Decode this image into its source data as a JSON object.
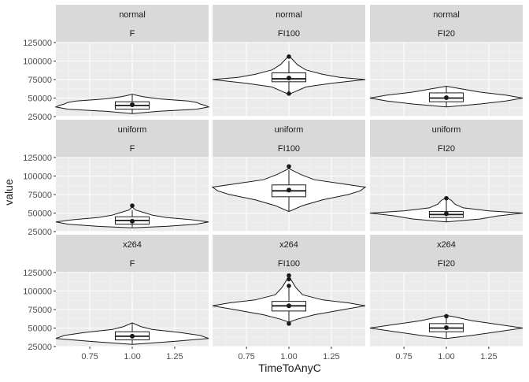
{
  "chart_data": {
    "type": "violin",
    "xlabel": "TimeToAnyC",
    "ylabel": "value",
    "xlim": [
      0.55,
      1.45
    ],
    "ylim": [
      25000,
      125000
    ],
    "x_ticks": [
      0.75,
      1.0,
      1.25
    ],
    "x_tick_labels": [
      "0.75",
      "1.00",
      "1.25"
    ],
    "y_ticks": [
      25000,
      50000,
      75000,
      100000,
      125000
    ],
    "y_tick_labels": [
      "25000",
      "50000",
      "75000",
      "100000",
      "125000"
    ],
    "grid": true,
    "facet_rows": [
      "normal",
      "uniform",
      "x264"
    ],
    "facet_cols": [
      "F",
      "FI100",
      "FI20"
    ],
    "panels": [
      {
        "row": "normal",
        "col": "F",
        "violin": [
          [
            29000,
            0.0
          ],
          [
            32000,
            0.15
          ],
          [
            35000,
            0.38
          ],
          [
            38000,
            0.45
          ],
          [
            40000,
            0.43
          ],
          [
            42000,
            0.4
          ],
          [
            44000,
            0.38
          ],
          [
            46000,
            0.33
          ],
          [
            49000,
            0.15
          ],
          [
            52000,
            0.06
          ],
          [
            55000,
            0.0
          ]
        ],
        "box": {
          "q1": 35000,
          "median": 40000,
          "q3": 45000,
          "whisker_low": 29000,
          "whisker_high": 55000
        },
        "mean": 41000,
        "outliers": []
      },
      {
        "row": "normal",
        "col": "FI100",
        "violin": [
          [
            55000,
            0.0
          ],
          [
            60000,
            0.05
          ],
          [
            65000,
            0.1
          ],
          [
            70000,
            0.25
          ],
          [
            75000,
            0.45
          ],
          [
            78000,
            0.3
          ],
          [
            82000,
            0.2
          ],
          [
            88000,
            0.1
          ],
          [
            95000,
            0.05
          ],
          [
            100000,
            0.03
          ],
          [
            107000,
            0.0
          ]
        ],
        "box": {
          "q1": 72000,
          "median": 76000,
          "q3": 84000,
          "whisker_low": 58000,
          "whisker_high": 100000
        },
        "mean": 77000,
        "outliers": [
          56000,
          106000
        ]
      },
      {
        "row": "normal",
        "col": "FI20",
        "violin": [
          [
            38000,
            0.0
          ],
          [
            42000,
            0.2
          ],
          [
            46000,
            0.35
          ],
          [
            50000,
            0.45
          ],
          [
            54000,
            0.35
          ],
          [
            58000,
            0.2
          ],
          [
            62000,
            0.1
          ],
          [
            66000,
            0.0
          ]
        ],
        "box": {
          "q1": 45000,
          "median": 50000,
          "q3": 57000,
          "whisker_low": 38000,
          "whisker_high": 66000
        },
        "mean": 50500,
        "outliers": []
      },
      {
        "row": "uniform",
        "col": "F",
        "violin": [
          [
            30000,
            0.0
          ],
          [
            32000,
            0.2
          ],
          [
            35000,
            0.38
          ],
          [
            38000,
            0.45
          ],
          [
            41000,
            0.35
          ],
          [
            44000,
            0.2
          ],
          [
            47000,
            0.12
          ],
          [
            50000,
            0.08
          ],
          [
            54000,
            0.02
          ],
          [
            58000,
            0.0
          ]
        ],
        "box": {
          "q1": 35000,
          "median": 40000,
          "q3": 45000,
          "whisker_low": 30000,
          "whisker_high": 54000
        },
        "mean": 39000,
        "outliers": [
          60000
        ]
      },
      {
        "row": "uniform",
        "col": "FI100",
        "violin": [
          [
            52000,
            0.0
          ],
          [
            60000,
            0.08
          ],
          [
            68000,
            0.2
          ],
          [
            75000,
            0.35
          ],
          [
            80000,
            0.42
          ],
          [
            85000,
            0.45
          ],
          [
            90000,
            0.3
          ],
          [
            95000,
            0.15
          ],
          [
            102000,
            0.07
          ],
          [
            110000,
            0.0
          ]
        ],
        "box": {
          "q1": 72000,
          "median": 80000,
          "q3": 88000,
          "whisker_low": 52000,
          "whisker_high": 108000
        },
        "mean": 81000,
        "outliers": [
          113000
        ]
      },
      {
        "row": "uniform",
        "col": "FI20",
        "violin": [
          [
            38000,
            0.0
          ],
          [
            42000,
            0.2
          ],
          [
            46000,
            0.3
          ],
          [
            50000,
            0.45
          ],
          [
            53000,
            0.25
          ],
          [
            57000,
            0.1
          ],
          [
            62000,
            0.05
          ],
          [
            67000,
            0.03
          ],
          [
            71000,
            0.0
          ]
        ],
        "box": {
          "q1": 44000,
          "median": 48000,
          "q3": 52000,
          "whisker_low": 38000,
          "whisker_high": 67000
        },
        "mean": 49000,
        "outliers": [
          70000
        ]
      },
      {
        "row": "x264",
        "col": "F",
        "violin": [
          [
            28000,
            0.0
          ],
          [
            32000,
            0.25
          ],
          [
            36000,
            0.45
          ],
          [
            40000,
            0.4
          ],
          [
            44000,
            0.28
          ],
          [
            48000,
            0.12
          ],
          [
            52000,
            0.05
          ],
          [
            57000,
            0.0
          ]
        ],
        "box": {
          "q1": 34000,
          "median": 39000,
          "q3": 45000,
          "whisker_low": 28000,
          "whisker_high": 57000
        },
        "mean": 39000,
        "outliers": []
      },
      {
        "row": "x264",
        "col": "FI100",
        "violin": [
          [
            58000,
            0.0
          ],
          [
            62000,
            0.05
          ],
          [
            68000,
            0.15
          ],
          [
            74000,
            0.3
          ],
          [
            80000,
            0.45
          ],
          [
            84000,
            0.35
          ],
          [
            88000,
            0.2
          ],
          [
            95000,
            0.08
          ],
          [
            105000,
            0.04
          ],
          [
            120000,
            0.0
          ]
        ],
        "box": {
          "q1": 73000,
          "median": 80000,
          "q3": 86000,
          "whisker_low": 58000,
          "whisker_high": 104000
        },
        "mean": 80000,
        "outliers": [
          56000,
          107000,
          116000,
          121000
        ]
      },
      {
        "row": "x264",
        "col": "FI20",
        "violin": [
          [
            36000,
            0.0
          ],
          [
            40000,
            0.15
          ],
          [
            45000,
            0.3
          ],
          [
            50000,
            0.45
          ],
          [
            55000,
            0.3
          ],
          [
            60000,
            0.15
          ],
          [
            65000,
            0.05
          ],
          [
            67000,
            0.0
          ]
        ],
        "box": {
          "q1": 45000,
          "median": 50000,
          "q3": 56000,
          "whisker_low": 36000,
          "whisker_high": 66000
        },
        "mean": 50500,
        "outliers": [
          66000
        ]
      }
    ]
  }
}
